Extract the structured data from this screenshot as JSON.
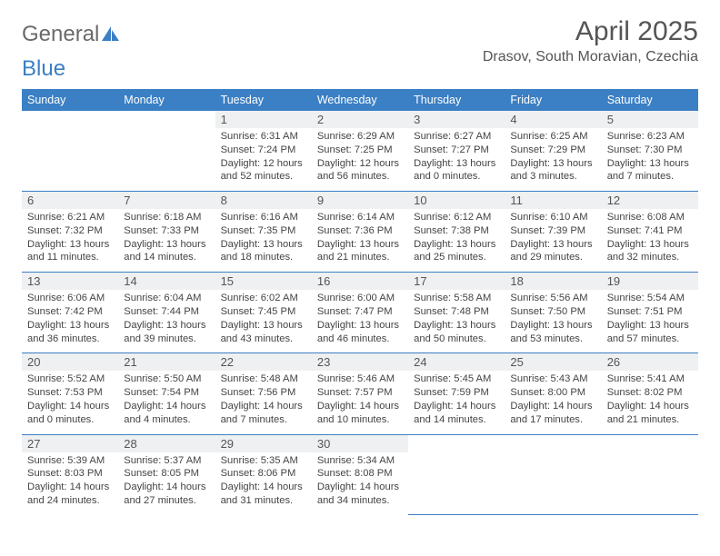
{
  "logo": {
    "part1": "General",
    "part2": "Blue"
  },
  "title": "April 2025",
  "location": "Drasov, South Moravian, Czechia",
  "colors": {
    "header_bg": "#3b7fc4",
    "header_text": "#ffffff",
    "daynum_bg": "#eef0f1",
    "border": "#3b7fc4",
    "text": "#444444",
    "title_color": "#555555"
  },
  "weekday_labels": [
    "Sunday",
    "Monday",
    "Tuesday",
    "Wednesday",
    "Thursday",
    "Friday",
    "Saturday"
  ],
  "weeks": [
    [
      null,
      null,
      {
        "n": "1",
        "sr": "6:31 AM",
        "ss": "7:24 PM",
        "dl": "12 hours and 52 minutes."
      },
      {
        "n": "2",
        "sr": "6:29 AM",
        "ss": "7:25 PM",
        "dl": "12 hours and 56 minutes."
      },
      {
        "n": "3",
        "sr": "6:27 AM",
        "ss": "7:27 PM",
        "dl": "13 hours and 0 minutes."
      },
      {
        "n": "4",
        "sr": "6:25 AM",
        "ss": "7:29 PM",
        "dl": "13 hours and 3 minutes."
      },
      {
        "n": "5",
        "sr": "6:23 AM",
        "ss": "7:30 PM",
        "dl": "13 hours and 7 minutes."
      }
    ],
    [
      {
        "n": "6",
        "sr": "6:21 AM",
        "ss": "7:32 PM",
        "dl": "13 hours and 11 minutes."
      },
      {
        "n": "7",
        "sr": "6:18 AM",
        "ss": "7:33 PM",
        "dl": "13 hours and 14 minutes."
      },
      {
        "n": "8",
        "sr": "6:16 AM",
        "ss": "7:35 PM",
        "dl": "13 hours and 18 minutes."
      },
      {
        "n": "9",
        "sr": "6:14 AM",
        "ss": "7:36 PM",
        "dl": "13 hours and 21 minutes."
      },
      {
        "n": "10",
        "sr": "6:12 AM",
        "ss": "7:38 PM",
        "dl": "13 hours and 25 minutes."
      },
      {
        "n": "11",
        "sr": "6:10 AM",
        "ss": "7:39 PM",
        "dl": "13 hours and 29 minutes."
      },
      {
        "n": "12",
        "sr": "6:08 AM",
        "ss": "7:41 PM",
        "dl": "13 hours and 32 minutes."
      }
    ],
    [
      {
        "n": "13",
        "sr": "6:06 AM",
        "ss": "7:42 PM",
        "dl": "13 hours and 36 minutes."
      },
      {
        "n": "14",
        "sr": "6:04 AM",
        "ss": "7:44 PM",
        "dl": "13 hours and 39 minutes."
      },
      {
        "n": "15",
        "sr": "6:02 AM",
        "ss": "7:45 PM",
        "dl": "13 hours and 43 minutes."
      },
      {
        "n": "16",
        "sr": "6:00 AM",
        "ss": "7:47 PM",
        "dl": "13 hours and 46 minutes."
      },
      {
        "n": "17",
        "sr": "5:58 AM",
        "ss": "7:48 PM",
        "dl": "13 hours and 50 minutes."
      },
      {
        "n": "18",
        "sr": "5:56 AM",
        "ss": "7:50 PM",
        "dl": "13 hours and 53 minutes."
      },
      {
        "n": "19",
        "sr": "5:54 AM",
        "ss": "7:51 PM",
        "dl": "13 hours and 57 minutes."
      }
    ],
    [
      {
        "n": "20",
        "sr": "5:52 AM",
        "ss": "7:53 PM",
        "dl": "14 hours and 0 minutes."
      },
      {
        "n": "21",
        "sr": "5:50 AM",
        "ss": "7:54 PM",
        "dl": "14 hours and 4 minutes."
      },
      {
        "n": "22",
        "sr": "5:48 AM",
        "ss": "7:56 PM",
        "dl": "14 hours and 7 minutes."
      },
      {
        "n": "23",
        "sr": "5:46 AM",
        "ss": "7:57 PM",
        "dl": "14 hours and 10 minutes."
      },
      {
        "n": "24",
        "sr": "5:45 AM",
        "ss": "7:59 PM",
        "dl": "14 hours and 14 minutes."
      },
      {
        "n": "25",
        "sr": "5:43 AM",
        "ss": "8:00 PM",
        "dl": "14 hours and 17 minutes."
      },
      {
        "n": "26",
        "sr": "5:41 AM",
        "ss": "8:02 PM",
        "dl": "14 hours and 21 minutes."
      }
    ],
    [
      {
        "n": "27",
        "sr": "5:39 AM",
        "ss": "8:03 PM",
        "dl": "14 hours and 24 minutes."
      },
      {
        "n": "28",
        "sr": "5:37 AM",
        "ss": "8:05 PM",
        "dl": "14 hours and 27 minutes."
      },
      {
        "n": "29",
        "sr": "5:35 AM",
        "ss": "8:06 PM",
        "dl": "14 hours and 31 minutes."
      },
      {
        "n": "30",
        "sr": "5:34 AM",
        "ss": "8:08 PM",
        "dl": "14 hours and 34 minutes."
      },
      null,
      null,
      null
    ]
  ],
  "labels": {
    "sunrise": "Sunrise: ",
    "sunset": "Sunset: ",
    "daylight": "Daylight: "
  }
}
